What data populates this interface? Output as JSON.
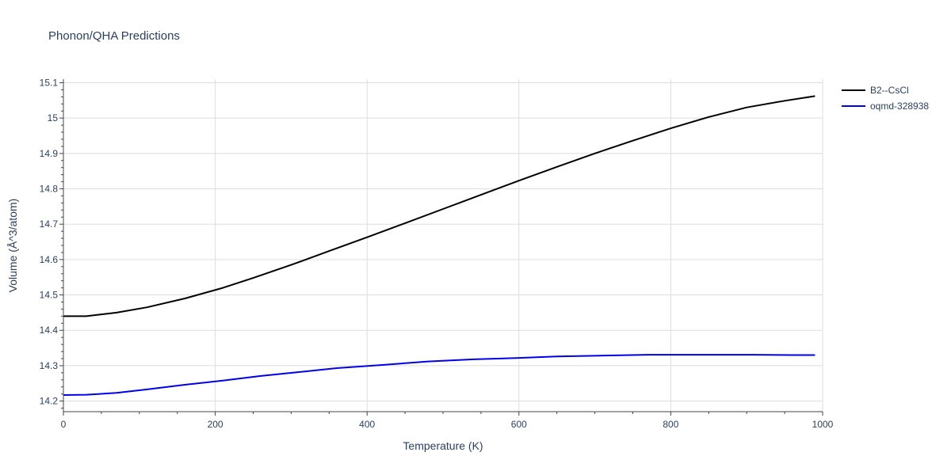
{
  "chart_data": {
    "type": "line",
    "title": "Phonon/QHA Predictions",
    "xlabel": "Temperature (K)",
    "ylabel": "Volume (Å^3/atom)",
    "xlim": [
      0,
      1000
    ],
    "ylim": [
      14.17,
      15.11
    ],
    "xticks": [
      0,
      200,
      400,
      600,
      800,
      1000
    ],
    "yticks": [
      14.2,
      14.3,
      14.4,
      14.5,
      14.6,
      14.7,
      14.8,
      14.9,
      15,
      15.1
    ],
    "xtick_labels": [
      "0",
      "200",
      "400",
      "600",
      "800",
      "1000"
    ],
    "ytick_labels": [
      "14.2",
      "14.3",
      "14.4",
      "14.5",
      "14.6",
      "14.7",
      "14.8",
      "14.9",
      "15",
      "15.1"
    ],
    "grid": true,
    "legend_position": "top-right",
    "series": [
      {
        "name": "B2--CsCl",
        "color": "#000000",
        "x": [
          0,
          30,
          50,
          70,
          110,
          160,
          210,
          250,
          300,
          350,
          400,
          450,
          500,
          550,
          600,
          650,
          700,
          750,
          800,
          850,
          900,
          950,
          990
        ],
        "y": [
          14.44,
          14.44,
          14.445,
          14.45,
          14.465,
          14.49,
          14.52,
          14.548,
          14.585,
          14.624,
          14.663,
          14.703,
          14.743,
          14.783,
          14.823,
          14.862,
          14.9,
          14.936,
          14.971,
          15.003,
          15.03,
          15.049,
          15.062
        ]
      },
      {
        "name": "oqmd-328938",
        "color": "#0000ee",
        "x": [
          0,
          30,
          70,
          110,
          160,
          210,
          260,
          310,
          360,
          420,
          480,
          540,
          600,
          650,
          700,
          770,
          840,
          910,
          960,
          990
        ],
        "y": [
          14.217,
          14.218,
          14.223,
          14.233,
          14.246,
          14.258,
          14.271,
          14.282,
          14.293,
          14.302,
          14.312,
          14.318,
          14.322,
          14.326,
          14.328,
          14.331,
          14.331,
          14.331,
          14.33,
          14.33
        ]
      }
    ]
  }
}
